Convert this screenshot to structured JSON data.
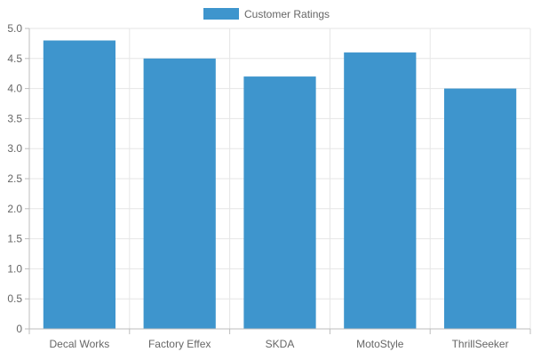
{
  "chart_data": {
    "type": "bar",
    "categories": [
      "Decal Works",
      "Factory Effex",
      "SKDA",
      "MotoStyle",
      "ThrillSeeker"
    ],
    "series": [
      {
        "name": "Customer Ratings",
        "values": [
          4.8,
          4.5,
          4.2,
          4.6,
          4.0
        ]
      }
    ],
    "ylim": [
      0,
      5
    ],
    "y_ticks": [
      "0",
      "0.5",
      "1.0",
      "1.5",
      "2.0",
      "2.5",
      "3.0",
      "3.5",
      "4.0",
      "4.5",
      "5.0"
    ],
    "grid": true,
    "legend_position": "top",
    "colors": {
      "bar": "#3e95cd",
      "grid": "#e6e6e6",
      "axis": "#bdbdbd",
      "text": "#666666"
    }
  }
}
